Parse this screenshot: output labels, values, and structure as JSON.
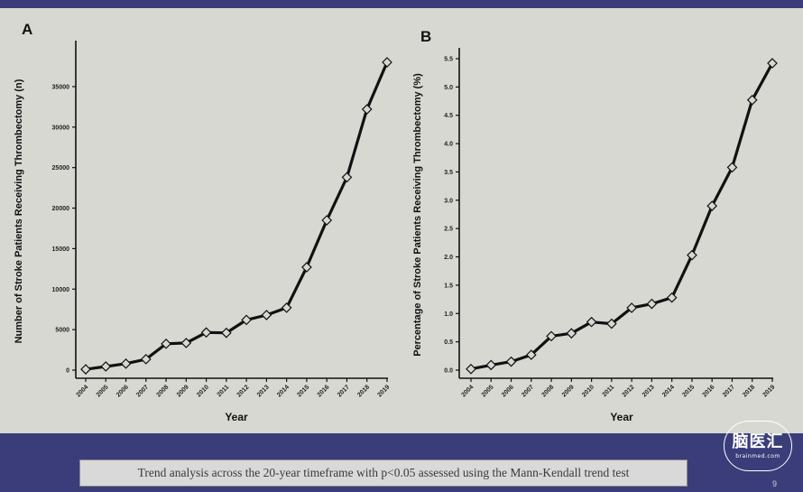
{
  "chart_data": [
    {
      "type": "line",
      "panel_label": "A",
      "xlabel": "Year",
      "ylabel": "Number of Stroke Patients Receiving Thrombectomy (n)",
      "categories": [
        "2004",
        "2005",
        "2006",
        "2007",
        "2008",
        "2009",
        "2010",
        "2011",
        "2012",
        "2013",
        "2014",
        "2015",
        "2016",
        "2017",
        "2018",
        "2019"
      ],
      "values": [
        100,
        450,
        800,
        1350,
        3250,
        3350,
        4650,
        4600,
        6200,
        6800,
        7700,
        12700,
        18500,
        23800,
        32200,
        38000
      ],
      "ylim": [
        0,
        38000
      ],
      "yticks": [
        "0",
        "5000",
        "10000",
        "15000",
        "20000",
        "25000",
        "30000",
        "35000"
      ],
      "marker": "diamond",
      "grid": false,
      "line_color": "#111111"
    },
    {
      "type": "line",
      "panel_label": "B",
      "xlabel": "Year",
      "ylabel": "Percentage of Stroke Patients Receiving Thrombectomy (%)",
      "categories": [
        "2004",
        "2005",
        "2006",
        "2007",
        "2008",
        "2009",
        "2010",
        "2011",
        "2012",
        "2013",
        "2014",
        "2015",
        "2016",
        "2017",
        "2018",
        "2019"
      ],
      "values": [
        0.02,
        0.09,
        0.15,
        0.27,
        0.6,
        0.65,
        0.85,
        0.82,
        1.1,
        1.17,
        1.28,
        2.03,
        2.9,
        3.58,
        4.77,
        5.42
      ],
      "ylim": [
        0,
        5.5
      ],
      "yticks": [
        "0.0",
        "0.5",
        "1.0",
        "1.5",
        "2.0",
        "2.5",
        "3.0",
        "3.5",
        "4.0",
        "4.5",
        "5.0",
        "5.5"
      ],
      "marker": "diamond",
      "grid": false,
      "line_color": "#111111"
    }
  ],
  "caption": "Trend analysis across the 20-year timeframe with p<0.05 assessed using the Mann-Kendall trend test",
  "logo": {
    "text": "脑医汇",
    "url": "brainmed.com"
  },
  "page_number": "9",
  "colors": {
    "slide_background": "#3a3d79",
    "plot_background": "#d7d8d2"
  }
}
